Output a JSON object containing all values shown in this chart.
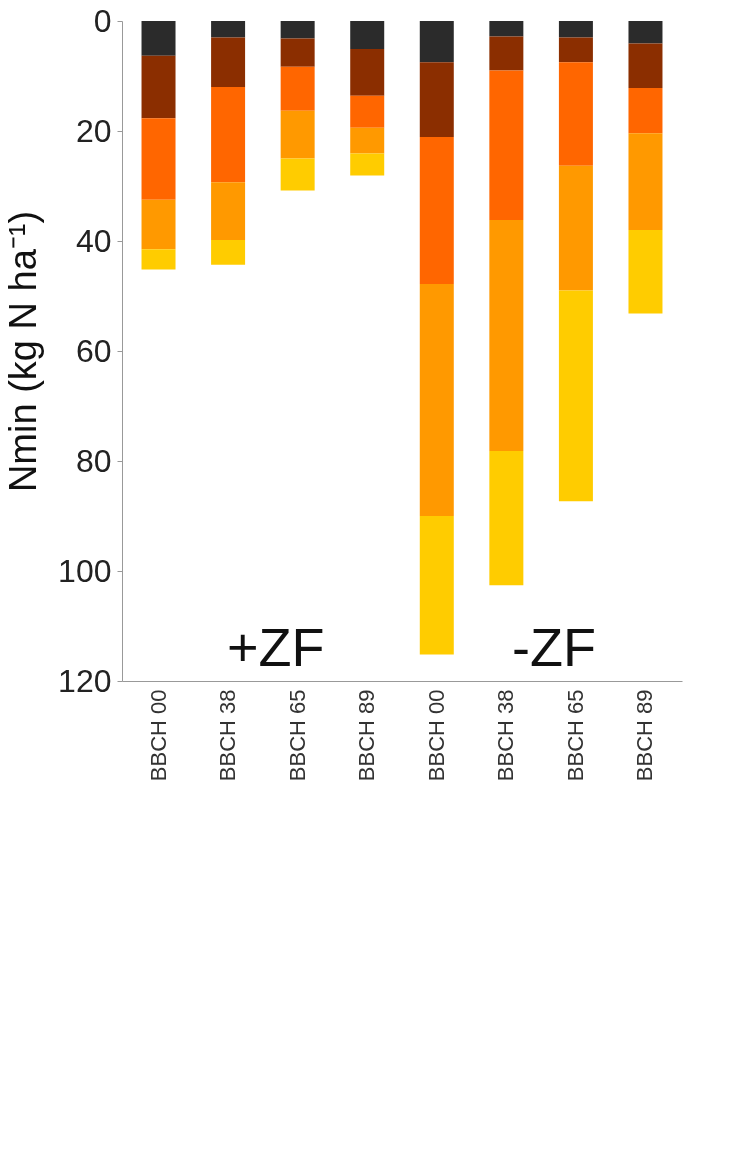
{
  "chart_data": {
    "type": "bar",
    "stacked": true,
    "ylabel": "Nmin (kg N ha⁻¹)",
    "categories": [
      "BBCH 00",
      "BBCH 38",
      "BBCH 65",
      "BBCH 89",
      "BBCH 00",
      "BBCH 38",
      "BBCH 65",
      "BBCH 89"
    ],
    "series": [
      {
        "color": "#2b2b2b",
        "values": [
          6.3,
          3.0,
          3.2,
          5.1,
          7.5,
          2.8,
          3.0,
          4.1
        ]
      },
      {
        "color": "#8b2e00",
        "values": [
          11.4,
          9.0,
          5.1,
          8.5,
          13.6,
          6.2,
          4.5,
          8.1
        ]
      },
      {
        "color": "#ff6600",
        "values": [
          14.8,
          17.3,
          8.0,
          5.8,
          26.7,
          27.2,
          18.8,
          8.2
        ]
      },
      {
        "color": "#ff9900",
        "values": [
          9.0,
          10.5,
          8.7,
          4.7,
          42.2,
          42.0,
          22.7,
          17.6
        ]
      },
      {
        "color": "#ffcc00",
        "values": [
          3.7,
          4.5,
          5.8,
          4.0,
          25.2,
          24.4,
          38.3,
          15.2
        ]
      }
    ],
    "ylim": [
      120,
      0
    ],
    "yticks": [
      0,
      20,
      40,
      60,
      80,
      100,
      120
    ],
    "annotations": [
      "+ZF",
      "-ZF"
    ],
    "grid": false,
    "legend": false
  }
}
